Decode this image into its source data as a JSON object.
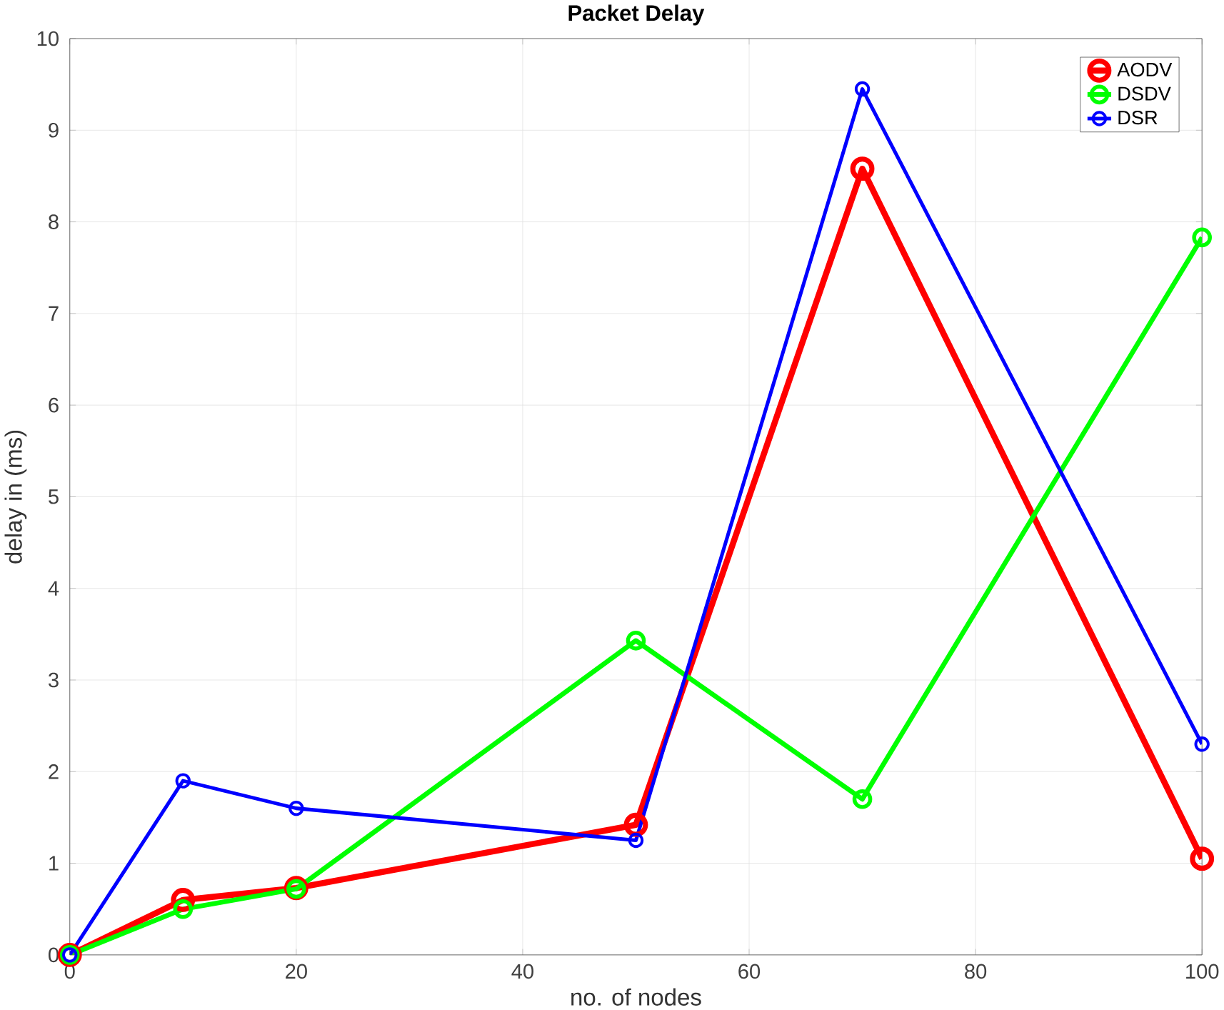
{
  "chart_data": {
    "type": "line",
    "title": "Packet Delay",
    "xlabel": "no. of nodes",
    "ylabel": "delay in (ms)",
    "x": [
      0,
      10,
      20,
      50,
      70,
      100
    ],
    "series": [
      {
        "name": "AODV",
        "color": "#ff0000",
        "values": [
          0,
          0.6,
          0.73,
          1.42,
          8.58,
          1.05
        ]
      },
      {
        "name": "DSDV",
        "color": "#00ff00",
        "values": [
          0,
          0.5,
          0.72,
          3.43,
          1.7,
          7.83
        ]
      },
      {
        "name": "DSR",
        "color": "#0000ff",
        "values": [
          0,
          1.9,
          1.6,
          1.25,
          9.45,
          2.3
        ]
      }
    ],
    "xlim": [
      0,
      100
    ],
    "ylim": [
      0,
      10
    ],
    "xticks": [
      0,
      20,
      40,
      60,
      80,
      100
    ],
    "yticks": [
      0,
      1,
      2,
      3,
      4,
      5,
      6,
      7,
      8,
      9,
      10
    ],
    "grid": true,
    "legend": "top right",
    "marker": "circle",
    "line_style": "solid"
  }
}
